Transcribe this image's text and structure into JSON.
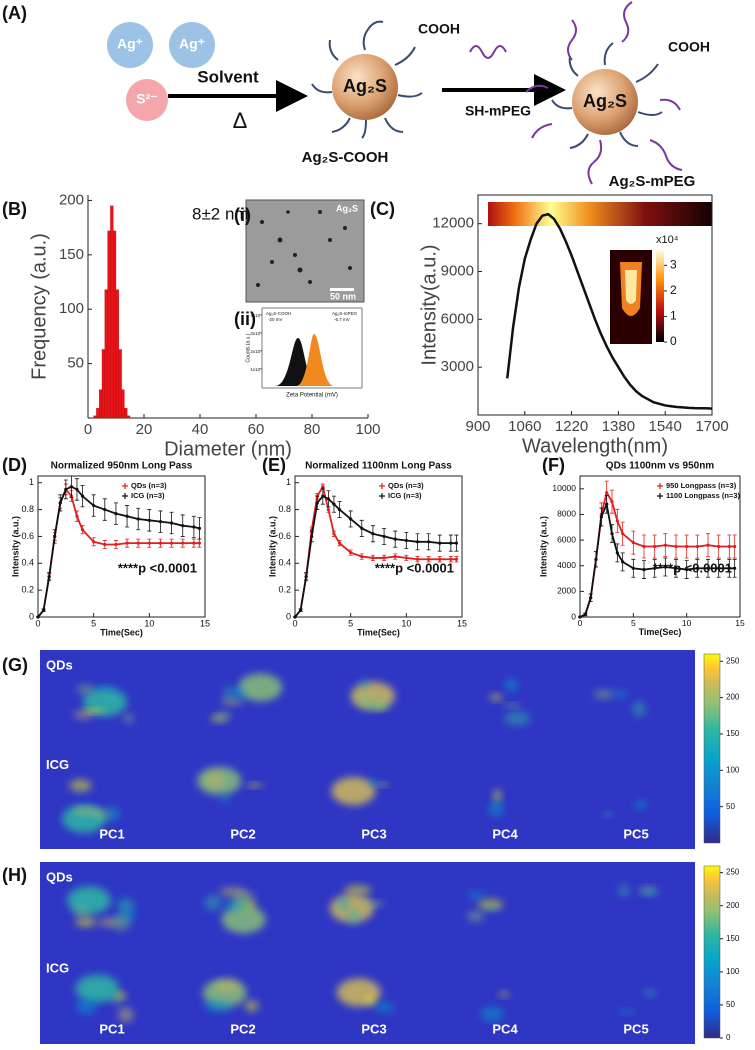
{
  "panel_labels": [
    "(A)",
    "(B)",
    "(C)",
    "(D)",
    "(E)",
    "(F)",
    "(G)",
    "(H)"
  ],
  "schematic": {
    "ion1": "Ag⁺",
    "ion2": "Ag⁺",
    "ion3": "S²⁻",
    "step1": "Solvent",
    "heat": "Δ",
    "core1": "Ag₂S",
    "ligand1": "COOH",
    "product1": "Ag₂S-COOH",
    "step2": "SH-mPEG",
    "core2": "Ag₂S",
    "ligand2": "COOH",
    "product2": "Ag₂S-mPEG"
  },
  "chart_data": [
    {
      "type": "histogram",
      "annotation": "8±2 nm",
      "x_label": "Diameter (nm)",
      "y_label": "Frequency (a.u.)",
      "bins": [
        2,
        3,
        4,
        5,
        6,
        7,
        8,
        9,
        10,
        11,
        12,
        13,
        14,
        15
      ],
      "values": [
        2,
        9,
        26,
        63,
        118,
        172,
        195,
        172,
        118,
        63,
        26,
        9,
        2
      ],
      "color": "#e8141a",
      "xlim": [
        0,
        100
      ],
      "xticks": [
        0,
        20,
        40,
        60,
        80,
        100
      ],
      "ylim": [
        0,
        205
      ],
      "yticks": [
        50,
        100,
        150,
        200
      ],
      "inset_i": {
        "label": "(i)",
        "title": "Ag₂S",
        "scale_bar": "50 nm"
      },
      "inset_ii": {
        "label": "(ii)",
        "y_label": "Counts (a.u.)",
        "x_label": "Zeta Potential (mV)",
        "yticks": [
          "4x10⁵",
          "3x10⁵",
          "2x10⁵",
          "1x10⁵"
        ],
        "series_labels": [
          "Ag₂S-COOH",
          "-20 mV",
          "Ag₂S-mPEG",
          "-6.7 mV"
        ]
      }
    },
    {
      "type": "line",
      "x_label": "Wavelength(nm)",
      "y_label": "Intensity(a.u.)",
      "x": [
        1000,
        1020,
        1040,
        1060,
        1080,
        1100,
        1120,
        1140,
        1160,
        1180,
        1200,
        1220,
        1240,
        1260,
        1280,
        1300,
        1320,
        1340,
        1360,
        1380,
        1400,
        1420,
        1440,
        1460,
        1480,
        1500,
        1520,
        1540,
        1560,
        1580,
        1600,
        1620,
        1640,
        1660,
        1680,
        1700
      ],
      "series": [
        {
          "color": "#111111",
          "values": [
            2300,
            5500,
            8000,
            9800,
            11000,
            12000,
            12500,
            12600,
            12300,
            11700,
            10900,
            10000,
            9000,
            8000,
            7000,
            6000,
            5100,
            4300,
            3600,
            3000,
            2400,
            1900,
            1500,
            1200,
            1000,
            800,
            700,
            600,
            550,
            500,
            480,
            450,
            430,
            420,
            420,
            400
          ]
        }
      ],
      "xlim": [
        900,
        1700
      ],
      "xticks": [
        900,
        1060,
        1220,
        1380,
        1540,
        1700
      ],
      "ylim": [
        0,
        13800
      ],
      "yticks": [
        3000,
        6000,
        9000,
        12000
      ],
      "inset_colorbar": {
        "label": "x10⁴",
        "lim": [
          0,
          3.6
        ],
        "ticks": [
          0,
          1,
          2,
          3
        ]
      }
    },
    {
      "type": "line",
      "title": "Normalized 950nm Long Pass",
      "x_label": "Time(Sec)",
      "y_label": "Intensity (a.u.)",
      "annotation": "****p <0.0001",
      "legend": "upper right",
      "x": [
        0,
        0.5,
        1,
        1.5,
        2,
        2.5,
        3,
        3.5,
        4,
        5,
        6,
        7,
        8,
        9,
        10,
        11,
        12,
        13,
        14,
        14.5
      ],
      "series": [
        {
          "name": "QDs (n=3)",
          "color": "#e02020",
          "values": [
            0,
            0.05,
            0.3,
            0.6,
            0.85,
            0.95,
            0.9,
            0.75,
            0.65,
            0.56,
            0.54,
            0.54,
            0.55,
            0.55,
            0.55,
            0.55,
            0.55,
            0.55,
            0.55,
            0.55
          ],
          "errors": [
            0,
            0.01,
            0.02,
            0.03,
            0.04,
            0.04,
            0.04,
            0.04,
            0.03,
            0.03,
            0.03,
            0.03,
            0.03,
            0.03,
            0.03,
            0.03,
            0.03,
            0.03,
            0.03,
            0.03
          ]
        },
        {
          "name": "ICG (n=3)",
          "color": "#111111",
          "values": [
            0,
            0.05,
            0.3,
            0.6,
            0.85,
            0.95,
            0.97,
            0.95,
            0.9,
            0.83,
            0.8,
            0.77,
            0.75,
            0.73,
            0.72,
            0.71,
            0.7,
            0.68,
            0.67,
            0.66
          ],
          "errors": [
            0,
            0.01,
            0.03,
            0.05,
            0.06,
            0.07,
            0.08,
            0.08,
            0.08,
            0.08,
            0.08,
            0.08,
            0.08,
            0.08,
            0.08,
            0.08,
            0.08,
            0.08,
            0.08,
            0.08
          ]
        }
      ],
      "xlim": [
        0,
        15
      ],
      "xticks": [
        0,
        5,
        10,
        15
      ],
      "ylim": [
        0,
        1.05
      ],
      "yticks": [
        0,
        0.2,
        0.4,
        0.6,
        0.8,
        1
      ]
    },
    {
      "type": "line",
      "title": "Normalized 1100nm Long Pass",
      "x_label": "Time(Sec)",
      "y_label": "Intensity (a.u.)",
      "annotation": "****p <0.0001",
      "legend": "upper right",
      "x": [
        0,
        0.5,
        1,
        1.5,
        2,
        2.5,
        3,
        3.5,
        4,
        5,
        6,
        7,
        8,
        9,
        10,
        11,
        12,
        13,
        14,
        14.5
      ],
      "series": [
        {
          "name": "QDs (n=3)",
          "color": "#e02020",
          "values": [
            0,
            0.05,
            0.3,
            0.65,
            0.9,
            0.97,
            0.8,
            0.62,
            0.55,
            0.48,
            0.45,
            0.44,
            0.44,
            0.45,
            0.44,
            0.43,
            0.43,
            0.43,
            0.43,
            0.43
          ],
          "errors": [
            0,
            0.01,
            0.02,
            0.02,
            0.02,
            0.02,
            0.02,
            0.02,
            0.02,
            0.02,
            0.02,
            0.02,
            0.02,
            0.02,
            0.02,
            0.02,
            0.02,
            0.02,
            0.02,
            0.02
          ]
        },
        {
          "name": "ICG (n=3)",
          "color": "#111111",
          "values": [
            0,
            0.05,
            0.3,
            0.6,
            0.85,
            0.9,
            0.88,
            0.84,
            0.8,
            0.73,
            0.66,
            0.62,
            0.6,
            0.58,
            0.57,
            0.56,
            0.56,
            0.55,
            0.55,
            0.55
          ],
          "errors": [
            0,
            0.01,
            0.03,
            0.04,
            0.05,
            0.06,
            0.06,
            0.06,
            0.06,
            0.06,
            0.06,
            0.06,
            0.06,
            0.06,
            0.06,
            0.06,
            0.06,
            0.06,
            0.06,
            0.06
          ]
        }
      ],
      "xlim": [
        0,
        15
      ],
      "xticks": [
        0,
        5,
        10,
        15
      ],
      "ylim": [
        0,
        1.05
      ],
      "yticks": [
        0,
        0.2,
        0.4,
        0.6,
        0.8,
        1
      ]
    },
    {
      "type": "line",
      "title": "QDs 1100nm vs 950nm",
      "x_label": "Time(Sec)",
      "y_label": "Intensity (a.u.)",
      "annotation": "****p <0.0001",
      "legend": "upper right",
      "x": [
        0,
        0.5,
        1,
        1.5,
        2,
        2.5,
        3,
        3.5,
        4,
        5,
        6,
        7,
        8,
        9,
        10,
        11,
        12,
        13,
        14,
        14.5
      ],
      "series": [
        {
          "name": "950 Longpass (n=3)",
          "color": "#e02020",
          "values": [
            0,
            200,
            1500,
            4500,
            8000,
            9700,
            9000,
            7500,
            6500,
            5800,
            5500,
            5500,
            5600,
            5500,
            5500,
            5500,
            5600,
            5500,
            5500,
            5500
          ],
          "errors": [
            0,
            100,
            300,
            600,
            900,
            900,
            900,
            900,
            900,
            900,
            900,
            900,
            900,
            900,
            900,
            900,
            900,
            900,
            900,
            900
          ]
        },
        {
          "name": "1100 Longpass (n=3)",
          "color": "#111111",
          "values": [
            0,
            200,
            1500,
            4500,
            7800,
            8800,
            6500,
            5000,
            4300,
            3800,
            3700,
            3800,
            3900,
            3800,
            3700,
            3800,
            3800,
            3800,
            3800,
            3800
          ],
          "errors": [
            0,
            100,
            300,
            600,
            700,
            700,
            700,
            700,
            700,
            700,
            700,
            700,
            700,
            700,
            700,
            700,
            700,
            700,
            700,
            700
          ]
        }
      ],
      "xlim": [
        0,
        15
      ],
      "xticks": [
        0,
        5,
        10,
        15
      ],
      "ylim": [
        0,
        11000
      ],
      "yticks": [
        0,
        2000,
        4000,
        6000,
        8000,
        10000
      ]
    }
  ],
  "images": [
    {
      "rows": [
        "QDs",
        "ICG"
      ],
      "columns": [
        "PC1",
        "PC2",
        "PC3",
        "PC4",
        "PC5"
      ],
      "colorbar": {
        "lim": [
          0,
          260
        ],
        "ticks": [
          50,
          100,
          150,
          200,
          250
        ]
      }
    },
    {
      "rows": [
        "QDs",
        "ICG"
      ],
      "columns": [
        "PC1",
        "PC2",
        "PC3",
        "PC4",
        "PC5"
      ],
      "colorbar": {
        "lim": [
          0,
          260
        ],
        "ticks": [
          0,
          50,
          100,
          150,
          200,
          250
        ]
      }
    }
  ]
}
